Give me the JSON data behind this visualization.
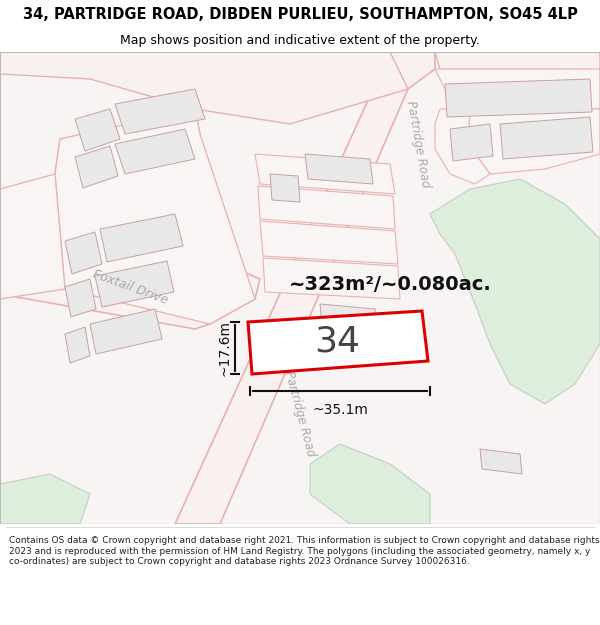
{
  "title_line1": "34, PARTRIDGE ROAD, DIBDEN PURLIEU, SOUTHAMPTON, SO45 4LP",
  "title_line2": "Map shows position and indicative extent of the property.",
  "footer_text": "Contains OS data © Crown copyright and database right 2021. This information is subject to Crown copyright and database rights 2023 and is reproduced with the permission of HM Land Registry. The polygons (including the associated geometry, namely x, y co-ordinates) are subject to Crown copyright and database rights 2023 Ordnance Survey 100026316.",
  "bg_color": "#ffffff",
  "map_bg": "#f9f4f4",
  "road_stroke": "#e8b0b0",
  "road_fill": "#f9f0f0",
  "building_fill": "#e8e8e8",
  "building_edge": "#c8a0a0",
  "green_fill": "#ddeedd",
  "green_edge": "#c0d0c0",
  "property_color": "#dd0000",
  "property_fill": "#ffffff",
  "dim_color": "#111111",
  "label_34": "34",
  "area_label": "~323m²/~0.080ac.",
  "dim_width": "~35.1m",
  "dim_height": "~17.6m",
  "road_label_top": "Partridge Road",
  "road_label_foxtail": "Foxtail Drive",
  "road_label_bottom": "Partridge Road",
  "title_fontsize": 10.5,
  "subtitle_fontsize": 9.0,
  "footer_fontsize": 6.5
}
